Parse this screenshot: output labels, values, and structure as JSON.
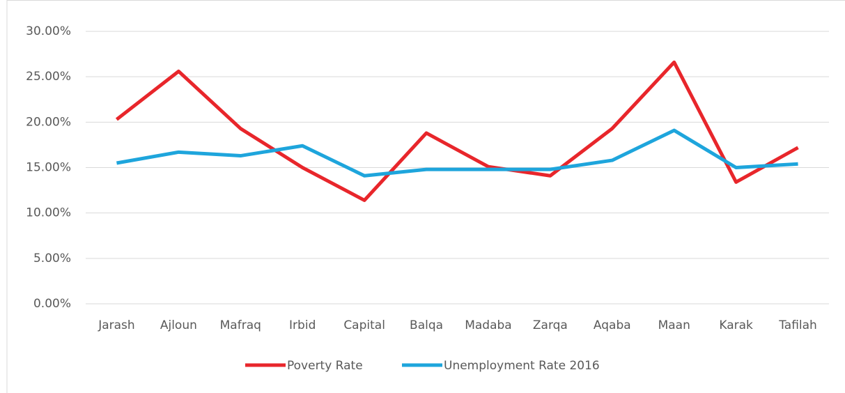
{
  "chart_data": {
    "type": "line",
    "categories": [
      "Jarash",
      "Ajloun",
      "Mafraq",
      "Irbid",
      "Capital",
      "Balqa",
      "Madaba",
      "Zarqa",
      "Aqaba",
      "Maan",
      "Karak",
      "Tafilah"
    ],
    "series": [
      {
        "name": "Poverty Rate",
        "color": "#e8262b",
        "values": [
          20.3,
          25.6,
          19.3,
          15.0,
          11.4,
          18.8,
          15.1,
          14.1,
          19.3,
          26.6,
          13.4,
          17.2
        ]
      },
      {
        "name": "Unemployment Rate 2016",
        "color": "#1ea5dc",
        "values": [
          15.5,
          16.7,
          16.3,
          17.4,
          14.1,
          14.8,
          14.8,
          14.8,
          15.8,
          19.1,
          15.0,
          15.4
        ]
      }
    ],
    "ylim": [
      0,
      30
    ],
    "yticks": [
      {
        "value": 0,
        "label": "0.00%"
      },
      {
        "value": 5,
        "label": "5.00%"
      },
      {
        "value": 10,
        "label": "10.00%"
      },
      {
        "value": 15,
        "label": "15.00%"
      },
      {
        "value": 20,
        "label": "20.00%"
      },
      {
        "value": 25,
        "label": "25.00%"
      },
      {
        "value": 30,
        "label": "30.00%"
      }
    ],
    "grid": true,
    "legend": "bottom"
  }
}
